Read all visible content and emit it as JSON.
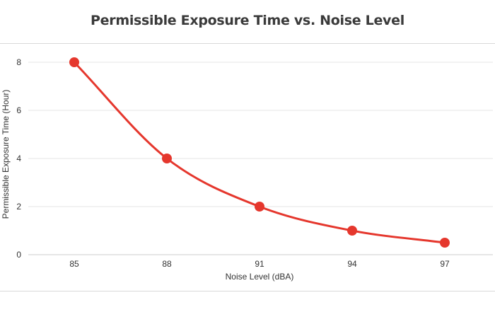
{
  "chart_data": {
    "type": "line",
    "title": "Permissible Exposure Time vs. Noise Level",
    "xlabel": "Noise Level (dBA)",
    "ylabel": "Permissible Exposure Time (Hour)",
    "categories": [
      "85",
      "88",
      "91",
      "94",
      "97"
    ],
    "series": [
      {
        "values": [
          8,
          4,
          2,
          1,
          0.5
        ],
        "color": "#e5372d"
      }
    ],
    "ylim": [
      0,
      8
    ],
    "yticks": [
      0,
      2,
      4,
      6,
      8
    ],
    "grid": true,
    "curve": "smooth",
    "legend": "none"
  },
  "colors": {
    "line": "#e5372d",
    "grid": "#e6e6e6",
    "axis": "#cccccc"
  }
}
